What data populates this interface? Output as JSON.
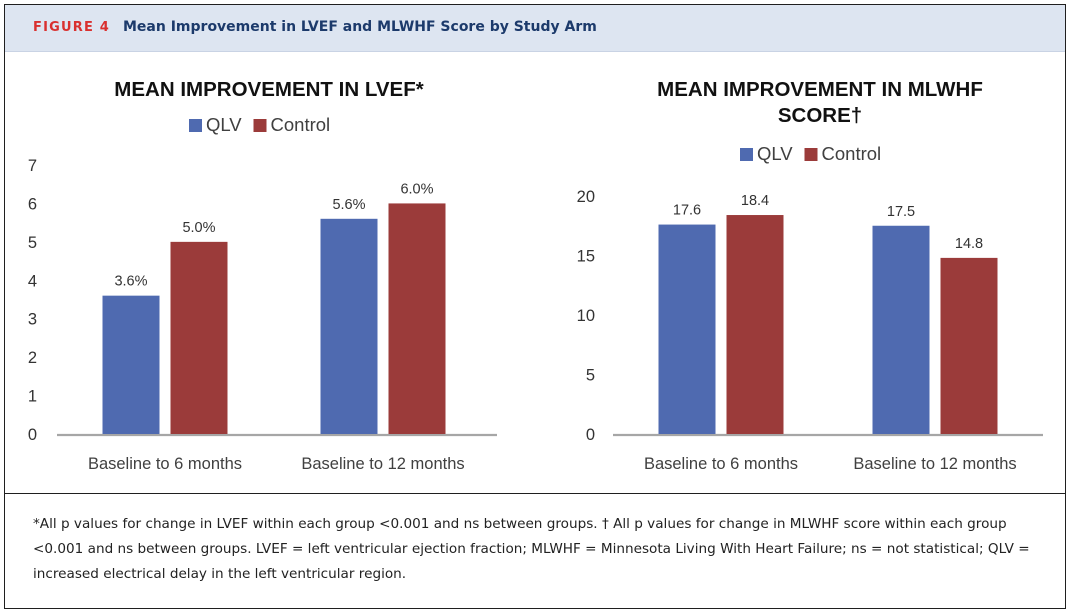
{
  "figure": {
    "label": "FIGURE 4",
    "title": "Mean Improvement in LVEF and MLWHF Score by Study Arm",
    "caption": "*All p values for change in LVEF within each group <0.001 and ns between groups. † All p values for change in MLWHF score within each group <0.001 and ns between groups. LVEF = left ventricular ejection fraction; MLWHF = Minnesota Living With Heart Failure; ns = not statistical; QLV = increased electrical delay in the left ventricular region."
  },
  "colors": {
    "qlv": "#4f6ab0",
    "control": "#9b3b3a",
    "axis": "#a6a6a6"
  },
  "chart_data": [
    {
      "type": "bar",
      "title": "MEAN IMPROVEMENT IN LVEF*",
      "categories": [
        "Baseline to 6 months",
        "Baseline to 12 months"
      ],
      "series": [
        {
          "name": "QLV",
          "values": [
            3.6,
            5.6
          ],
          "labels": [
            "3.6%",
            "5.6%"
          ]
        },
        {
          "name": "Control",
          "values": [
            5.0,
            6.0
          ],
          "labels": [
            "5.0%",
            "6.0%"
          ]
        }
      ],
      "yticks": [
        "0",
        "1",
        "2",
        "3",
        "4",
        "5",
        "6",
        "7"
      ],
      "ylim": [
        0,
        7
      ],
      "legend_position": "top",
      "grid": false
    },
    {
      "type": "bar",
      "title": "MEAN IMPROVEMENT IN MLWHF SCORE†",
      "categories": [
        "Baseline to 6 months",
        "Baseline to 12 months"
      ],
      "series": [
        {
          "name": "QLV",
          "values": [
            17.6,
            17.5
          ],
          "labels": [
            "17.6",
            "17.5"
          ]
        },
        {
          "name": "Control",
          "values": [
            18.4,
            14.8
          ],
          "labels": [
            "18.4",
            "14.8"
          ]
        }
      ],
      "yticks": [
        "0",
        "5",
        "10",
        "15",
        "20"
      ],
      "ylim": [
        0,
        20
      ],
      "legend_position": "top",
      "grid": false
    }
  ]
}
